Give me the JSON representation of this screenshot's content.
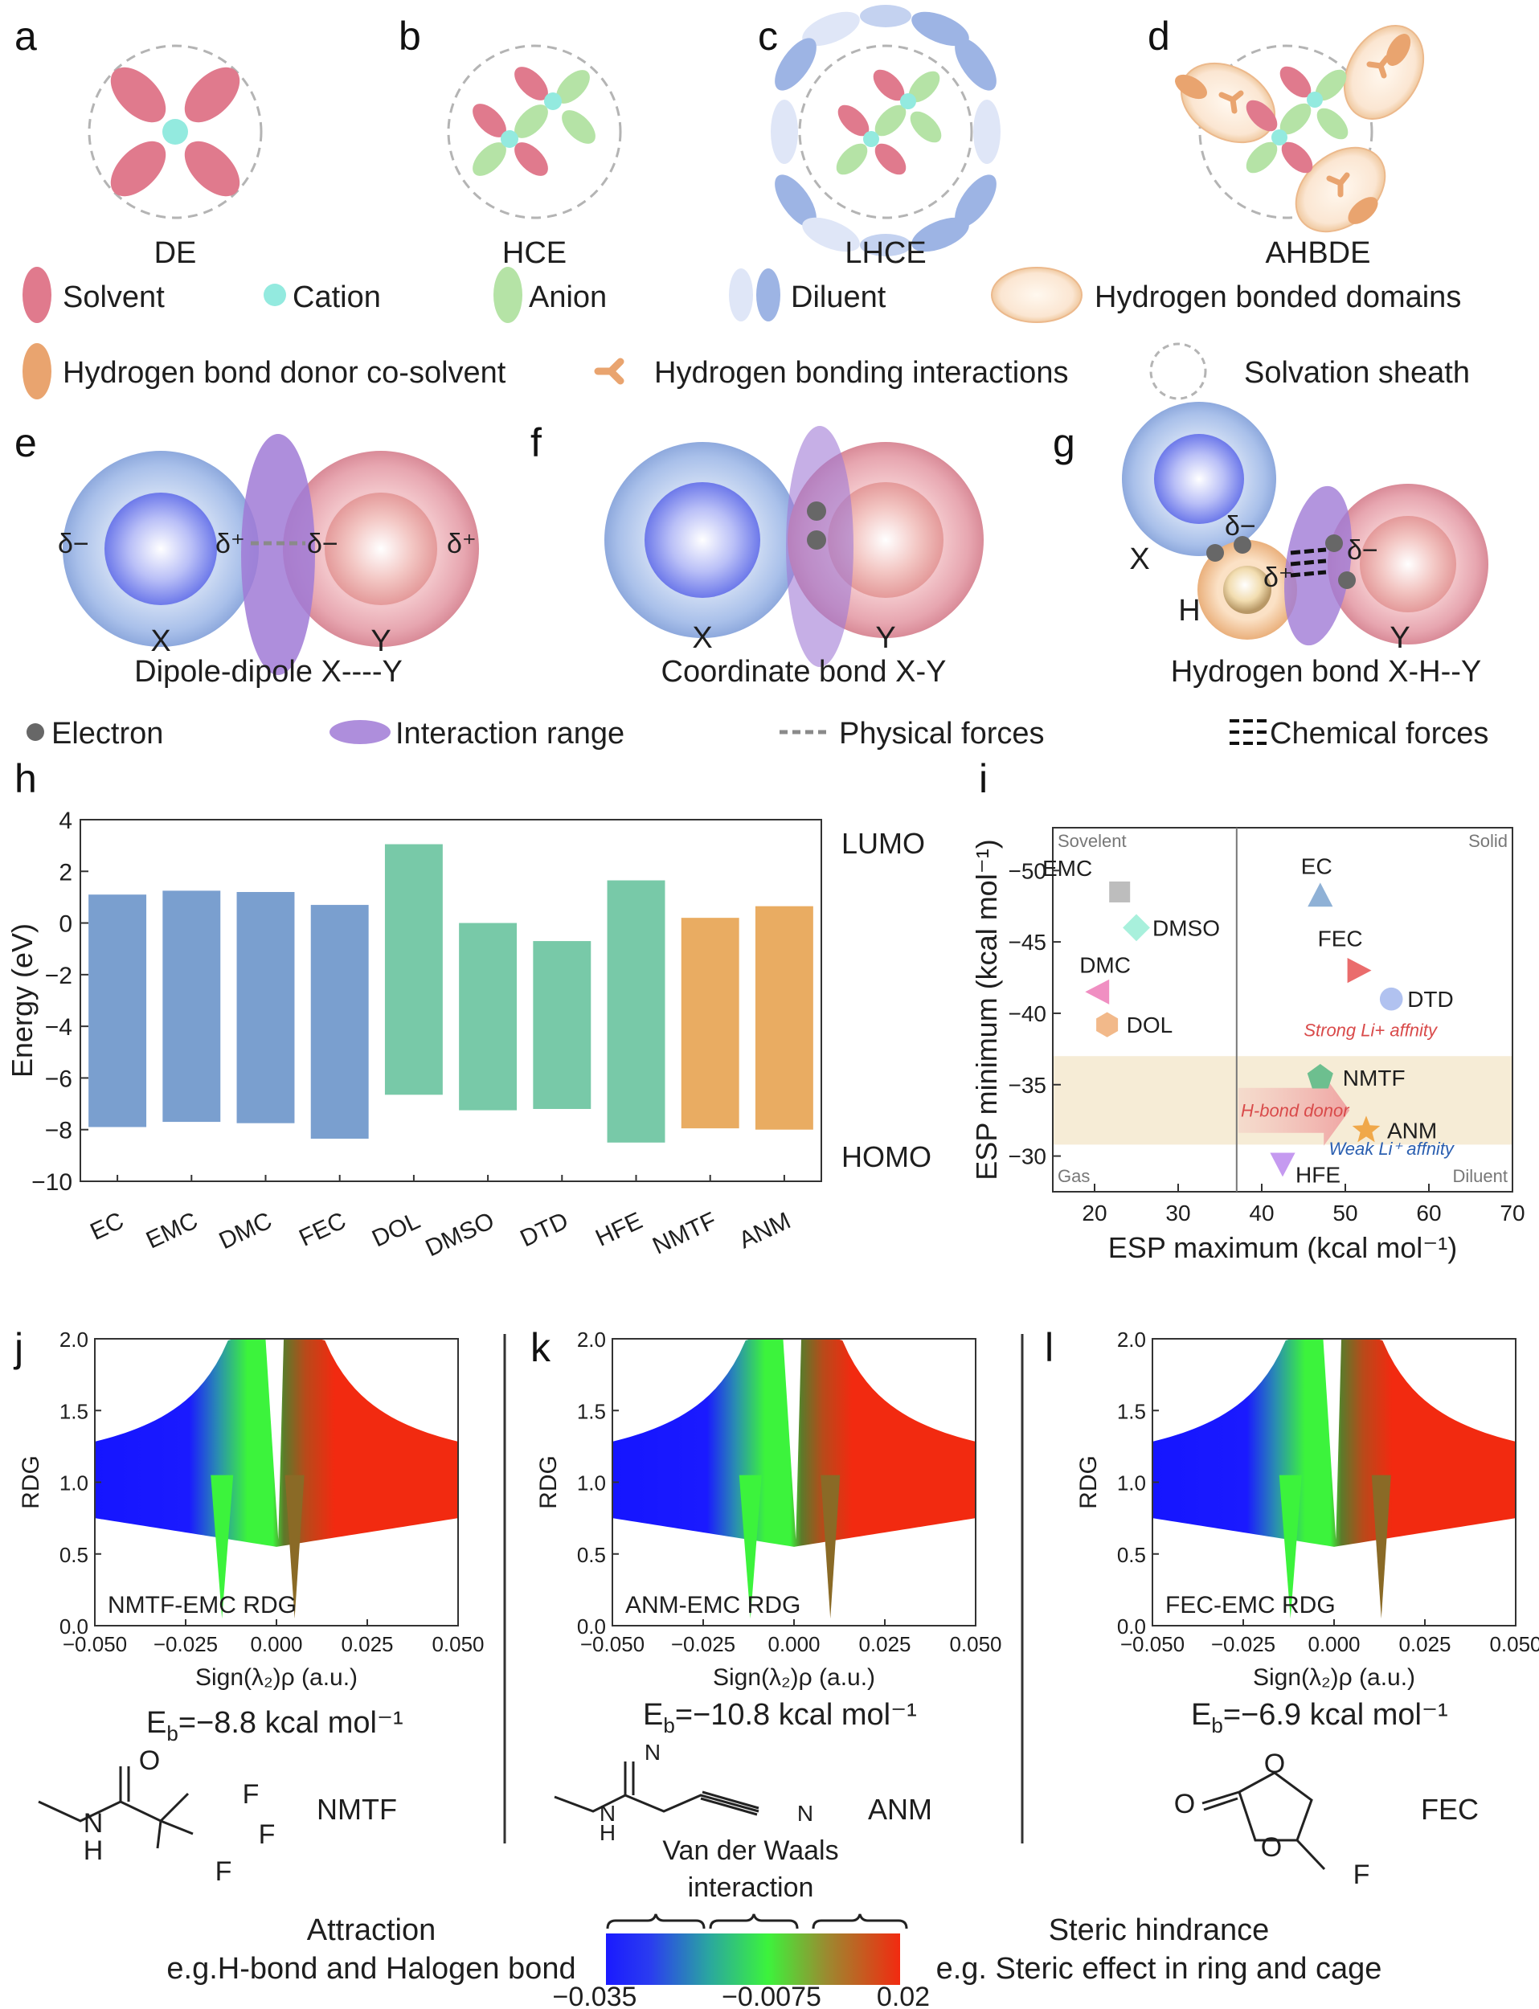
{
  "panel_labels": {
    "a": "a",
    "b": "b",
    "c": "c",
    "d": "d",
    "e": "e",
    "f": "f",
    "g": "g",
    "h": "h",
    "i": "i",
    "j": "j",
    "k": "k",
    "l": "l"
  },
  "top_row": {
    "labels": [
      "DE",
      "HCE",
      "LHCE",
      "AHBDE"
    ]
  },
  "legend_top": {
    "solvent": "Solvent",
    "cation": "Cation",
    "anion": "Anion",
    "diluent": "Diluent",
    "hb_domains": "Hydrogen bonded domains",
    "hbd_cosolvent": "Hydrogen bond donor co-solvent",
    "hb_interactions": "Hydrogen bonding interactions",
    "sheath": "Solvation sheath"
  },
  "interactions": {
    "dipole": {
      "title": "Dipole-dipole X----Y",
      "x": "X",
      "y": "Y",
      "dminus": "δ−",
      "dplus": "δ⁺"
    },
    "coord": {
      "title": "Coordinate bond X-Y",
      "x": "X",
      "y": "Y"
    },
    "hbond": {
      "title": "Hydrogen bond X-H--Y",
      "x": "X",
      "y": "Y",
      "h": "H",
      "dminus": "δ−",
      "dplus": "δ⁺"
    }
  },
  "legend_mid": {
    "electron": "Electron",
    "range": "Interaction range",
    "physical": "Physical forces",
    "chemical": "Chemical forces"
  },
  "colors": {
    "solvent": "#e07a8d",
    "cation": "#93eadf",
    "anion": "#b5e3a6",
    "diluent": "#9db4e4",
    "cosolvent": "#e9a46f",
    "purple": "#a07ad6",
    "blue_bar": "#7a9fcf",
    "green_bar": "#78c9a8",
    "orange_bar": "#e9ac62"
  },
  "chart_data": [
    {
      "type": "bar",
      "id": "h",
      "ylabel": "Energy (eV)",
      "ylim": [
        -10,
        4
      ],
      "yticks": [
        "4",
        "2",
        "0",
        "−2",
        "−4",
        "−6",
        "−8",
        "−10"
      ],
      "top_label": "LUMO",
      "bottom_label": "HOMO",
      "categories": [
        "EC",
        "EMC",
        "DMC",
        "FEC",
        "DOL",
        "DMSO",
        "DTD",
        "HFE",
        "NMTF",
        "ANM"
      ],
      "lumo": [
        1.1,
        1.25,
        1.2,
        0.7,
        3.05,
        0.0,
        -0.7,
        1.65,
        0.2,
        0.65
      ],
      "homo": [
        -7.9,
        -7.7,
        -7.75,
        -8.35,
        -6.65,
        -7.25,
        -7.2,
        -8.5,
        -7.95,
        -8.0
      ],
      "groups": [
        "blue",
        "blue",
        "blue",
        "blue",
        "green",
        "green",
        "green",
        "green",
        "orange",
        "orange"
      ]
    },
    {
      "type": "scatter",
      "id": "i",
      "xlabel": "ESP maximum (kcal mol⁻¹)",
      "ylabel": "ESP minimum (kcal mol⁻¹)",
      "xlim": [
        15,
        70
      ],
      "ylim": [
        -53,
        -27.5
      ],
      "xticks": [
        "20",
        "30",
        "40",
        "50",
        "60",
        "70"
      ],
      "yticks": [
        "−50",
        "−45",
        "−40",
        "−35",
        "−30"
      ],
      "divider_x": 37,
      "band": [
        -37,
        -30.8
      ],
      "corner_labels": {
        "tl": "Sovelent",
        "tr": "Solid",
        "bl": "Gas",
        "br": "Diluent"
      },
      "strong": "Strong Li+ affnity",
      "weak": "Weak Li⁺ affnity",
      "hbond_donor": "H-bond donor",
      "points": [
        {
          "name": "EMC",
          "x": 23,
          "y": -48.5,
          "shape": "square",
          "color": "#bdbdbd"
        },
        {
          "name": "DMSO",
          "x": 25,
          "y": -46,
          "shape": "diamond",
          "color": "#a8f0dc"
        },
        {
          "name": "DMC",
          "x": 20.5,
          "y": -41.5,
          "shape": "tri-left",
          "color": "#f08fc2"
        },
        {
          "name": "DOL",
          "x": 21.5,
          "y": -39.2,
          "shape": "hexagon",
          "color": "#f2b98a"
        },
        {
          "name": "EC",
          "x": 47,
          "y": -48.2,
          "shape": "tri-up",
          "color": "#8fb1d6"
        },
        {
          "name": "FEC",
          "x": 51.5,
          "y": -43,
          "shape": "tri-right",
          "color": "#ea6c6c"
        },
        {
          "name": "DTD",
          "x": 55.5,
          "y": -41,
          "shape": "circle",
          "color": "#b1c2f0"
        },
        {
          "name": "NMTF",
          "x": 47,
          "y": -35.5,
          "shape": "pentagon",
          "color": "#6dbf8f"
        },
        {
          "name": "ANM",
          "x": 52.5,
          "y": -31.8,
          "shape": "star",
          "color": "#f0a84a"
        },
        {
          "name": "HFE",
          "x": 42.5,
          "y": -29.5,
          "shape": "tri-down",
          "color": "#c59af0"
        }
      ]
    },
    {
      "type": "scatter-density",
      "id": "rdg",
      "xlabel": "Sign(λ₂)ρ (a.u.)",
      "ylabel": "RDG",
      "xlim": [
        -0.05,
        0.05
      ],
      "ylim": [
        0,
        2
      ],
      "xticks": [
        "−0.050",
        "−0.025",
        "0.000",
        "0.025",
        "0.050"
      ],
      "yticks": [
        "0.0",
        "0.5",
        "1.0",
        "1.5",
        "2.0"
      ],
      "panels": [
        {
          "label": "NMTF-EMC RDG",
          "eb": "=−8.8 kcal mol⁻¹",
          "min1": -0.015,
          "min2": 0.005
        },
        {
          "label": "ANM-EMC RDG",
          "eb": "=−10.8 kcal mol⁻¹",
          "min1": -0.012,
          "min2": 0.01
        },
        {
          "label": "FEC-EMC RDG",
          "eb": "=−6.9 kcal mol⁻¹",
          "min1": -0.012,
          "min2": 0.013
        }
      ]
    }
  ],
  "molecules": {
    "nmtf": {
      "name": "NMTF",
      "o": "O",
      "n": "N",
      "h": "H",
      "f1": "F",
      "f2": "F",
      "f3": "F"
    },
    "anm": {
      "name": "ANM",
      "n1": "N",
      "n2": "N",
      "h": "H",
      "n3": "N"
    },
    "fec": {
      "name": "FEC",
      "o1": "O",
      "o2": "O",
      "o3": "O",
      "f": "F"
    },
    "eb_prefix": "E",
    "eb_sub": "b"
  },
  "colorbar": {
    "vdw": "Van der Waals",
    "vdw2": "interaction",
    "attraction": "Attraction",
    "attraction_eg": "e.g.H-bond and Halogen bond",
    "steric": "Steric hindrance",
    "steric_eg": "e.g. Steric effect in ring and cage",
    "ticks": [
      "−0.035",
      "−0.0075",
      "0.02"
    ]
  }
}
